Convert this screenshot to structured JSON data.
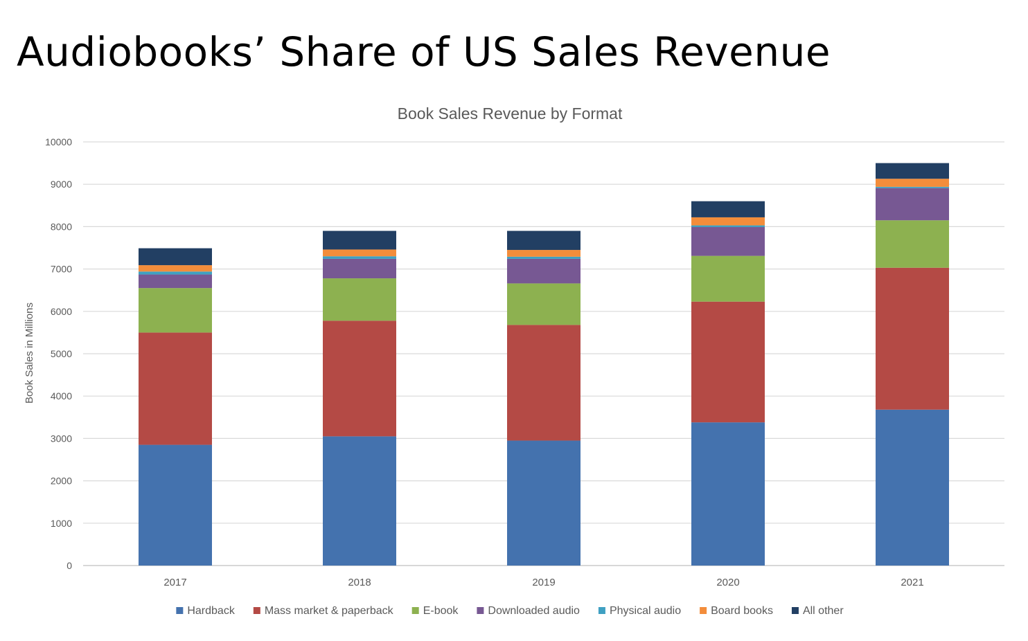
{
  "slide": {
    "title": "Audiobooks’ Share of US Sales Revenue"
  },
  "chart_data": {
    "type": "bar",
    "stacked": true,
    "title": "Book Sales Revenue by Format",
    "xlabel": "",
    "ylabel": "Book Sales in Millions",
    "ylim": [
      0,
      10000
    ],
    "yticks": [
      0,
      1000,
      2000,
      3000,
      4000,
      5000,
      6000,
      7000,
      8000,
      9000,
      10000
    ],
    "grid": true,
    "legend_position": "bottom",
    "categories": [
      "2017",
      "2018",
      "2019",
      "2020",
      "2021"
    ],
    "series": [
      {
        "name": "Hardback",
        "color": "#4472AE",
        "values": [
          2850,
          3050,
          2950,
          3380,
          3680
        ]
      },
      {
        "name": "Mass market & paperback",
        "color": "#B44A45",
        "values": [
          2650,
          2730,
          2730,
          2850,
          3350
        ]
      },
      {
        "name": "E-book",
        "color": "#8DB150",
        "values": [
          1050,
          1000,
          980,
          1080,
          1120
        ]
      },
      {
        "name": "Downloaded audio",
        "color": "#775893",
        "values": [
          320,
          460,
          580,
          680,
          760
        ]
      },
      {
        "name": "Physical audio",
        "color": "#3FA0C2",
        "values": [
          70,
          60,
          50,
          40,
          30
        ]
      },
      {
        "name": "Board books",
        "color": "#F38D3B",
        "values": [
          150,
          160,
          160,
          190,
          190
        ]
      },
      {
        "name": "All other",
        "color": "#223F63",
        "values": [
          400,
          440,
          450,
          380,
          370
        ]
      }
    ]
  }
}
